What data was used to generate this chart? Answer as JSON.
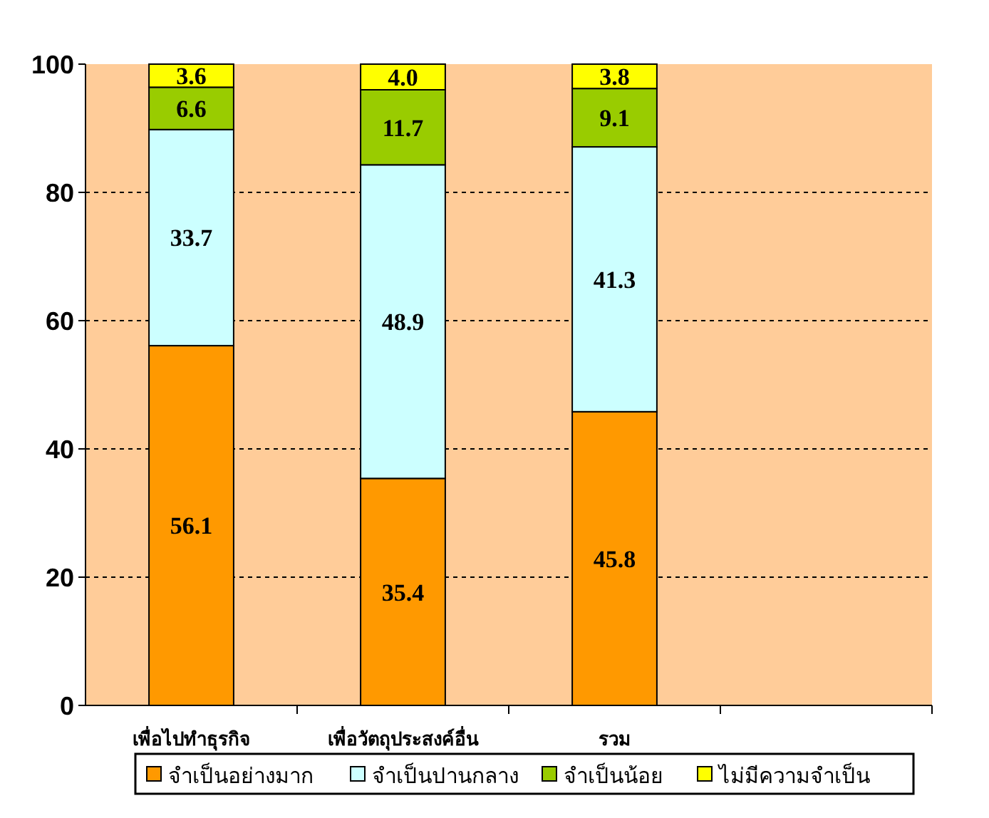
{
  "chart_data": {
    "type": "bar",
    "stacked": true,
    "categories": [
      "เพื่อไปทำธุรกิจ",
      "เพื่อวัตถุประสงค์อื่น",
      "รวม",
      null
    ],
    "series": [
      {
        "name": "จำเป็นอย่างมาก",
        "color": "#ff9900",
        "values": [
          56.1,
          35.4,
          45.8,
          null
        ]
      },
      {
        "name": "จำเป็นปานกลาง",
        "color": "#ccffff",
        "values": [
          33.7,
          48.9,
          41.3,
          null
        ]
      },
      {
        "name": "จำเป็นน้อย",
        "color": "#99cc00",
        "values": [
          6.6,
          11.7,
          9.1,
          null
        ]
      },
      {
        "name": "ไม่มีความจำเป็น",
        "color": "#ffff00",
        "values": [
          3.6,
          4.0,
          3.8,
          null
        ],
        "value_labels": [
          "3.6",
          "4.0",
          "3.8",
          null
        ]
      }
    ],
    "ylim": [
      0,
      100
    ],
    "yticks": [
      0,
      20,
      40,
      60,
      80,
      100
    ],
    "grid": "y",
    "data_labels": true,
    "legend": "bottom"
  }
}
